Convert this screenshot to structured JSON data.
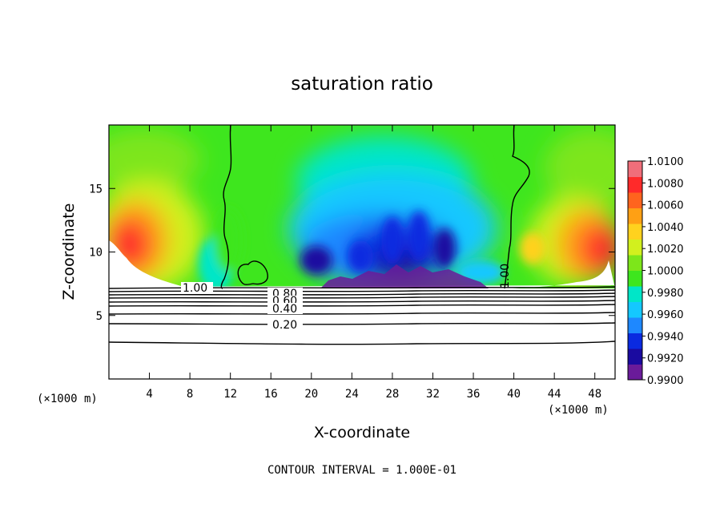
{
  "chart_data": {
    "type": "heatmap",
    "title": "saturation ratio",
    "xlabel": "X-coordinate",
    "ylabel": "Z-coordinate",
    "x_unit": "(×1000 m)",
    "z_unit": "(×1000 m)",
    "footer": "CONTOUR INTERVAL = 1.000E-01",
    "xlim": [
      0,
      50
    ],
    "ylim": [
      0,
      20
    ],
    "xticks": [
      4,
      8,
      12,
      16,
      20,
      24,
      28,
      32,
      36,
      40,
      44,
      48
    ],
    "yticks": [
      5,
      10,
      15
    ],
    "colorbar": {
      "labels": [
        "0.9900",
        "0.9920",
        "0.9940",
        "0.9960",
        "0.9980",
        "1.0000",
        "1.0020",
        "1.0040",
        "1.0060",
        "1.0080",
        "1.0100"
      ],
      "colors": [
        "#6a1b9a",
        "#1a0aa0",
        "#0a2ae0",
        "#1e88ff",
        "#14c8ff",
        "#00e6c8",
        "#3ee61e",
        "#7de61a",
        "#d2f01e",
        "#ffd21e",
        "#ffa014",
        "#ff641e",
        "#ff2a2a",
        "#f06e7a"
      ]
    },
    "contour_labels": [
      "1.00",
      "1.00",
      "0.80",
      "0.60",
      "0.40",
      "0.20"
    ]
  }
}
